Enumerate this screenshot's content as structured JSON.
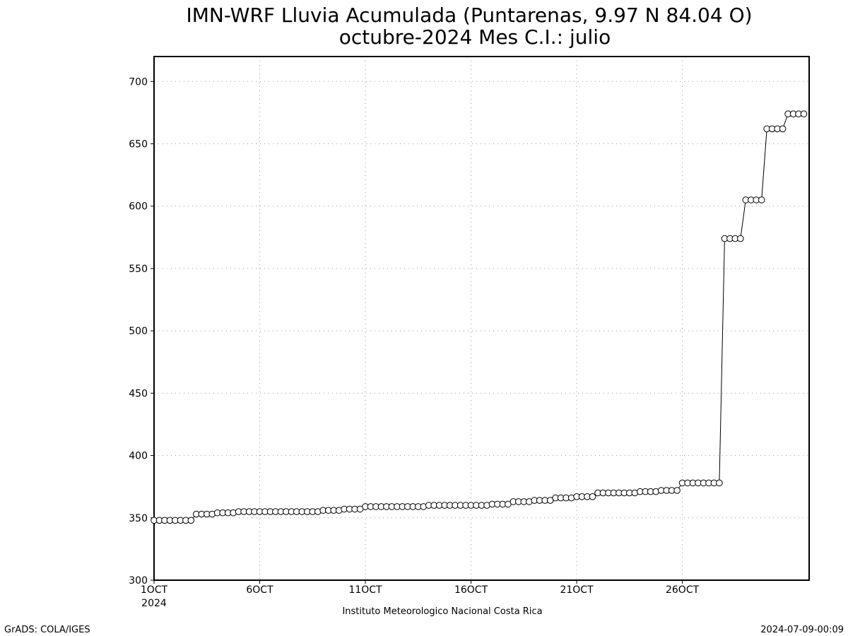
{
  "chart_data": {
    "type": "line",
    "title": "IMN-WRF  Lluvia Acumulada  (Puntarenas, 9.97  N 84.04  O)",
    "subtitle": "octubre-2024 Mes C.I.: julio",
    "xlabel": "",
    "ylabel": "",
    "ylim": [
      300,
      720
    ],
    "yticks": [
      "300",
      "350",
      "400",
      "450",
      "500",
      "550",
      "600",
      "650",
      "700"
    ],
    "xticks": [
      {
        "day": 1,
        "label": "1OCT",
        "sublabel": "2024"
      },
      {
        "day": 6,
        "label": "6OCT"
      },
      {
        "day": 11,
        "label": "11OCT"
      },
      {
        "day": 16,
        "label": "16OCT"
      },
      {
        "day": 21,
        "label": "21OCT"
      },
      {
        "day": 26,
        "label": "26OCT"
      }
    ],
    "xlim": [
      1,
      32
    ],
    "grid": true,
    "marker": "open-circle",
    "start": "2024-10-01",
    "step_hours": 6,
    "series": [
      {
        "name": "",
        "values": [
          348,
          348,
          348,
          348,
          348,
          348,
          348,
          348,
          353,
          353,
          353,
          353,
          354,
          354,
          354,
          354,
          355,
          355,
          355,
          355,
          355,
          355,
          355,
          355,
          355,
          355,
          355,
          355,
          355,
          355,
          355,
          355,
          356,
          356,
          356,
          356,
          357,
          357,
          357,
          357,
          359,
          359,
          359,
          359,
          359,
          359,
          359,
          359,
          359,
          359,
          359,
          359,
          360,
          360,
          360,
          360,
          360,
          360,
          360,
          360,
          360,
          360,
          360,
          360,
          361,
          361,
          361,
          361,
          363,
          363,
          363,
          363,
          364,
          364,
          364,
          364,
          366,
          366,
          366,
          366,
          367,
          367,
          367,
          367,
          370,
          370,
          370,
          370,
          370,
          370,
          370,
          370,
          371,
          371,
          371,
          371,
          372,
          372,
          372,
          372,
          378,
          378,
          378,
          378,
          378,
          378,
          378,
          378,
          574,
          574,
          574,
          574,
          605,
          605,
          605,
          605,
          662,
          662,
          662,
          662,
          674,
          674,
          674,
          674
        ]
      }
    ]
  },
  "footer": {
    "institution": "Instituto Meteorologico Nacional Costa Rica",
    "left": "GrADS: COLA/IGES",
    "right": "2024-07-09-00:09"
  }
}
